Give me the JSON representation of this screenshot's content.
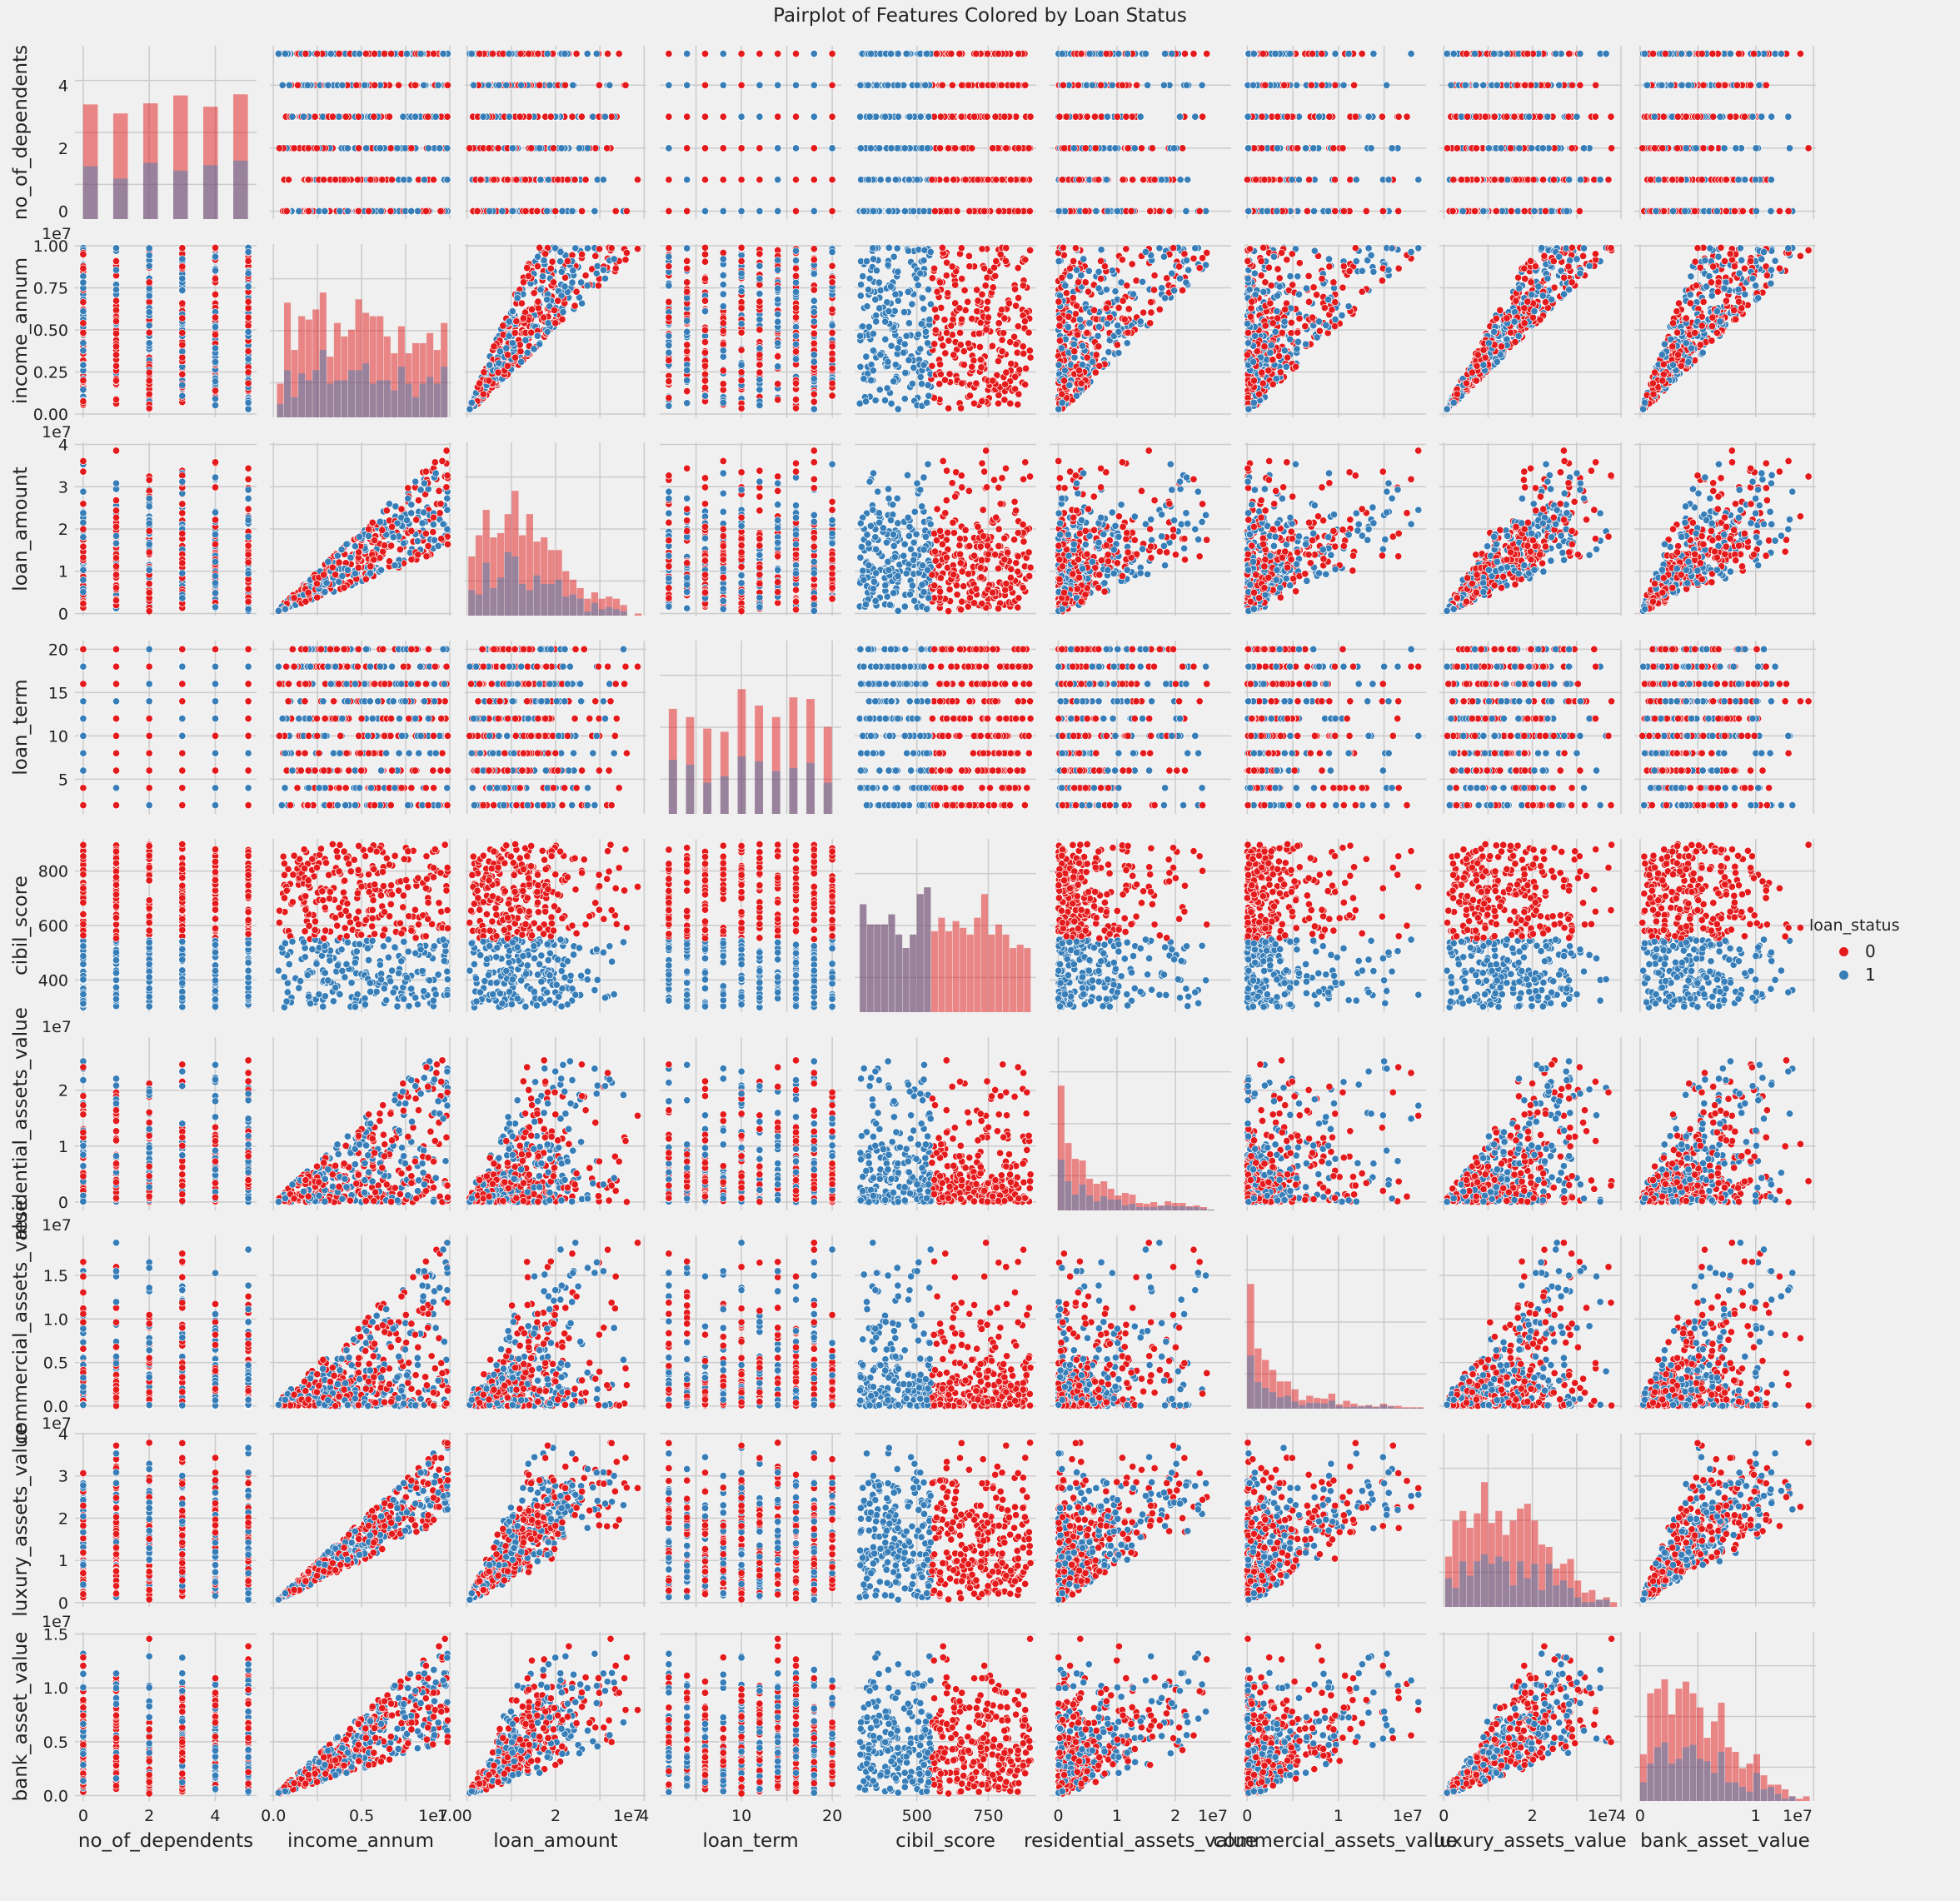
{
  "chart_data": {
    "type": "scatter",
    "subtype": "pairplot",
    "title": "Pairplot of Features Colored by Loan Status",
    "hue": "loan_status",
    "legend": {
      "title": "loan_status",
      "placement": "right",
      "entries": [
        {
          "label": "0",
          "color": "#e41a1c"
        },
        {
          "label": "1",
          "color": "#377eb8"
        }
      ]
    },
    "grid": true,
    "diagonal": "histogram",
    "variables": [
      {
        "name": "no_of_dependents",
        "range": [
          -0.25,
          5.25
        ],
        "ticks": [
          0,
          2,
          4
        ],
        "tick_labels": [
          "0",
          "2",
          "4"
        ],
        "offset": "",
        "type": "discrete",
        "levels": [
          0,
          1,
          2,
          3,
          4,
          5
        ]
      },
      {
        "name": "income_annum",
        "range": [
          -0.2,
          10.1
        ],
        "ticks": [
          0,
          2.5,
          5,
          7.5,
          10
        ],
        "tick_labels": [
          "0.00",
          "0.25",
          "0.50",
          "0.75",
          "1.00"
        ],
        "x_tick_labels": [
          "0.0",
          "",
          "0.5",
          "",
          "1.0"
        ],
        "offset": "1e7",
        "type": "continuous",
        "min": 0.2,
        "max": 9.9
      },
      {
        "name": "loan_amount",
        "range": [
          -0.5,
          40.5
        ],
        "ticks": [
          0,
          10,
          20,
          30,
          40
        ],
        "tick_labels": [
          "0",
          "1",
          "2",
          "3",
          "4"
        ],
        "x_tick_labels": [
          "0",
          "",
          "2",
          "",
          "4"
        ],
        "offset": "1e7",
        "type": "continuous",
        "min": 0.3,
        "max": 39.5
      },
      {
        "name": "loan_term",
        "range": [
          1,
          21
        ],
        "ticks": [
          5,
          10,
          15,
          20
        ],
        "tick_labels": [
          "5",
          "10",
          "15",
          "20"
        ],
        "x_tick_labels": [
          "",
          "10",
          "",
          "20"
        ],
        "offset": "",
        "type": "discrete",
        "levels": [
          2,
          4,
          6,
          8,
          10,
          12,
          14,
          16,
          18,
          20
        ]
      },
      {
        "name": "cibil_score",
        "range": [
          282,
          918
        ],
        "ticks": [
          400,
          600,
          800
        ],
        "tick_labels": [
          "400",
          "600",
          "800"
        ],
        "x_tick_labels": [
          "",
          "500",
          "750"
        ],
        "x_ticks": [
          250,
          500,
          750
        ],
        "offset": "",
        "type": "continuous",
        "min": 300,
        "max": 900
      },
      {
        "name": "residential_assets_value",
        "range": [
          -1.5,
          29.5
        ],
        "ticks": [
          0,
          10,
          20
        ],
        "tick_labels": [
          "0",
          "1",
          "2"
        ],
        "offset": "1e7",
        "type": "continuous",
        "min": -0.1,
        "max": 29.1
      },
      {
        "name": "commercial_assets_value",
        "range": [
          -0.3,
          19.6
        ],
        "ticks": [
          0,
          5,
          10,
          15,
          20
        ],
        "tick_labels": [
          "0.0",
          "0.5",
          "1.0",
          "1.5",
          "2.0"
        ],
        "x_tick_labels": [
          "0",
          "",
          "1",
          "",
          ""
        ],
        "offset": "1e7",
        "type": "continuous",
        "min": 0,
        "max": 19.4
      },
      {
        "name": "luxury_assets_value",
        "range": [
          -1,
          40
        ],
        "ticks": [
          0,
          10,
          20,
          30,
          40
        ],
        "tick_labels": [
          "0",
          "1",
          "2",
          "3",
          "4"
        ],
        "x_tick_labels": [
          "0",
          "",
          "2",
          "",
          "4"
        ],
        "offset": "1e7",
        "type": "continuous",
        "min": 0.3,
        "max": 39.2
      },
      {
        "name": "bank_asset_value",
        "range": [
          -0.5,
          15.2
        ],
        "ticks": [
          0,
          5,
          10,
          15
        ],
        "tick_labels": [
          "0.0",
          "0.5",
          "1.0",
          "1.5"
        ],
        "x_tick_labels": [
          "0",
          "",
          "1",
          ""
        ],
        "offset": "1e7",
        "type": "continuous",
        "min": 0,
        "max": 14.7
      }
    ],
    "relations": {
      "loan_amount": {
        "from": "income_annum",
        "lo": 1.5,
        "hi": 4.0
      },
      "luxury_assets_value": {
        "from": "income_annum",
        "lo": 2.0,
        "hi": 3.9
      },
      "bank_asset_value": {
        "from": "income_annum",
        "lo": 0.5,
        "hi": 1.5
      },
      "residential_assets_value": {
        "from": "income_annum",
        "lo": 0.0,
        "hi": 2.9
      },
      "commercial_assets_value": {
        "from": "income_annum",
        "lo": 0.0,
        "hi": 1.95
      }
    },
    "status_rule": {
      "variable": "cibil_score",
      "threshold": 550,
      "approved_label": "0",
      "rejected_label": "1"
    }
  }
}
